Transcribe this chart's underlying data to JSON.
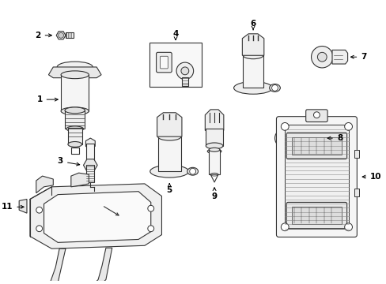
{
  "background_color": "#ffffff",
  "line_color": "#333333",
  "text_color": "#000000",
  "fig_width": 4.89,
  "fig_height": 3.6,
  "dpi": 100
}
